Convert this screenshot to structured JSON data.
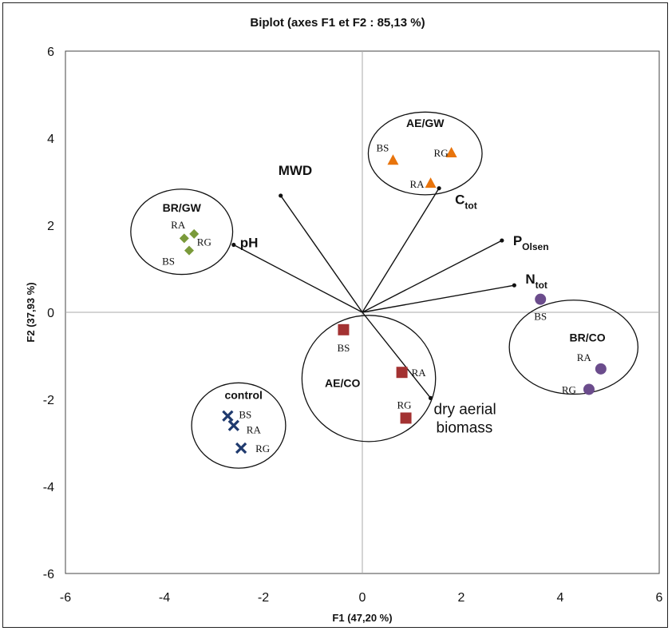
{
  "chart_data": {
    "type": "scatter",
    "title": "Biplot (axes F1 et F2 : 85,13 %)",
    "xlabel": "F1 (47,20 %)",
    "ylabel": "F2 (37,93 %)",
    "xlim": [
      -6,
      6
    ],
    "ylim": [
      -6,
      6
    ],
    "xticks": [
      "-6",
      "-4",
      "-2",
      "0",
      "2",
      "4",
      "6"
    ],
    "yticks": [
      "-6",
      "-4",
      "-2",
      "0",
      "2",
      "4",
      "6"
    ],
    "grid": false,
    "legend": "none",
    "groups": [
      {
        "name": "AE/GW",
        "marker": "triangle",
        "color": "#e8740c",
        "ellipse": {
          "cx": 1.27,
          "cy": 3.65,
          "rx": 1.15,
          "ry": 0.95
        },
        "label_at": [
          1.27,
          4.35
        ],
        "points": [
          {
            "label": "BS",
            "x": 0.62,
            "y": 3.5
          },
          {
            "label": "RG",
            "x": 1.8,
            "y": 3.67
          },
          {
            "label": "RA",
            "x": 1.38,
            "y": 2.97
          }
        ]
      },
      {
        "name": "BR/GW",
        "marker": "diamond",
        "color": "#7a9a3a",
        "ellipse": {
          "cx": -3.65,
          "cy": 1.85,
          "rx": 1.03,
          "ry": 0.98
        },
        "label_at": [
          -3.65,
          2.4
        ],
        "points": [
          {
            "label": "RA",
            "x": -3.4,
            "y": 1.8
          },
          {
            "label": "RG",
            "x": -3.6,
            "y": 1.7
          },
          {
            "label": "BS",
            "x": -3.5,
            "y": 1.42
          }
        ]
      },
      {
        "name": "BR/CO",
        "marker": "circle",
        "color": "#6b4c8c",
        "ellipse": {
          "cx": 4.27,
          "cy": -0.8,
          "rx": 1.3,
          "ry": 1.08
        },
        "label_at": [
          4.55,
          -0.58
        ],
        "points": [
          {
            "label": "BS",
            "x": 3.6,
            "y": 0.3
          },
          {
            "label": "RA",
            "x": 4.82,
            "y": -1.3
          },
          {
            "label": "RG",
            "x": 4.58,
            "y": -1.77
          }
        ]
      },
      {
        "name": "AE/CO",
        "marker": "square",
        "color": "#a33232",
        "ellipse": {
          "cx": 0.13,
          "cy": -1.52,
          "rx": 1.35,
          "ry": 1.45
        },
        "label_at": [
          -0.4,
          -1.62
        ],
        "points": [
          {
            "label": "BS",
            "x": -0.38,
            "y": -0.4
          },
          {
            "label": "RA",
            "x": 0.8,
            "y": -1.38
          },
          {
            "label": "RG",
            "x": 0.88,
            "y": -2.43
          }
        ]
      },
      {
        "name": "control",
        "marker": "cross",
        "color": "#1f3a6e",
        "ellipse": {
          "cx": -2.5,
          "cy": -2.6,
          "rx": 0.95,
          "ry": 0.98
        },
        "label_at": [
          -2.4,
          -1.9
        ],
        "points": [
          {
            "label": "BS",
            "x": -2.72,
            "y": -2.38
          },
          {
            "label": "RA",
            "x": -2.6,
            "y": -2.6
          },
          {
            "label": "RG",
            "x": -2.45,
            "y": -3.12
          }
        ]
      }
    ],
    "vectors": [
      {
        "name": "MWD",
        "sub": "",
        "x": -1.65,
        "y": 2.68
      },
      {
        "name": "pH",
        "sub": "",
        "x": -2.6,
        "y": 1.55
      },
      {
        "name": "C",
        "sub": "tot",
        "x": 1.55,
        "y": 2.85
      },
      {
        "name": "P",
        "sub": "Olsen",
        "x": 2.82,
        "y": 1.65
      },
      {
        "name": "N",
        "sub": "tot",
        "x": 3.07,
        "y": 0.62
      },
      {
        "name": "dry aerial\nbiomass",
        "sub": "",
        "x": 1.38,
        "y": -1.97
      }
    ]
  }
}
